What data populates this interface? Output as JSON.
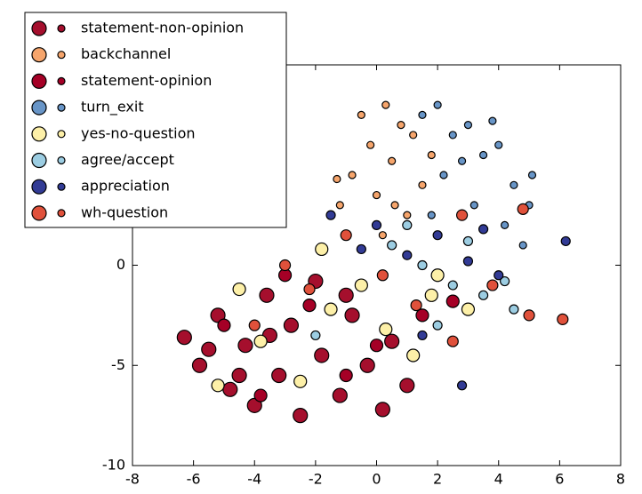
{
  "chart_data": {
    "type": "scatter",
    "xlim": [
      -8,
      8
    ],
    "xticks": [
      -8,
      -6,
      -4,
      -2,
      0,
      2,
      4,
      6,
      8
    ],
    "ylim": [
      -10,
      10
    ],
    "yticks": [
      -10,
      -5,
      0
    ],
    "legend": "upper-left",
    "series": [
      {
        "name": "statement-non-opinion",
        "color": "#a50f2d",
        "x": [
          -6.3,
          -5.8,
          -5.2,
          -4.8,
          -4.3,
          -4,
          -3.6,
          -3.2,
          -2.8,
          -2.5,
          -2,
          -1.8,
          -1.2,
          -0.8,
          -0.3,
          0.2,
          0.5,
          1,
          -5.5,
          -3.5,
          -1,
          -4.5
        ],
        "y": [
          -3.6,
          -5,
          -2.5,
          -6.2,
          -4,
          -7,
          -1.5,
          -5.5,
          -3,
          -7.5,
          -0.8,
          -4.5,
          -6.5,
          -2.5,
          -5,
          -7.2,
          -3.8,
          -6,
          -4.2,
          -3.5,
          -1.5,
          -5.5
        ]
      },
      {
        "name": "backchannel",
        "color": "#f6a56c",
        "x": [
          -0.8,
          -0.5,
          -0.2,
          0,
          0.3,
          0.5,
          0.8,
          1,
          1.2,
          1.5,
          -1.2,
          0.2,
          1.8,
          -1.3,
          0.6
        ],
        "y": [
          4.5,
          7.5,
          6,
          3.5,
          8,
          5.2,
          7,
          2.5,
          6.5,
          4,
          3,
          1.5,
          5.5,
          4.3,
          3
        ]
      },
      {
        "name": "statement-opinion",
        "color": "#a50026",
        "x": [
          -5,
          -3.8,
          -2.2,
          -1,
          0,
          1.5,
          2.5,
          -3
        ],
        "y": [
          -3,
          -6.5,
          -2,
          -5.5,
          -4,
          -2.5,
          -1.8,
          -0.5
        ]
      },
      {
        "name": "turn_exit",
        "color": "#6895c7",
        "x": [
          1.5,
          2,
          2.5,
          3,
          3.5,
          4,
          4.5,
          5,
          2.2,
          3.2,
          4.2,
          4.8,
          2.8,
          3.8,
          5.1,
          1.8
        ],
        "y": [
          7.5,
          8,
          6.5,
          7,
          5.5,
          6,
          4,
          3,
          4.5,
          3,
          2,
          1,
          5.2,
          7.2,
          4.5,
          2.5
        ]
      },
      {
        "name": "yes-no-question",
        "color": "#fdf0a8",
        "x": [
          -4.5,
          -3.8,
          -2.5,
          -1.5,
          -0.5,
          0.3,
          1.2,
          2,
          3,
          -1.8,
          -5.2,
          1.8
        ],
        "y": [
          -1.2,
          -3.8,
          -5.8,
          -2.2,
          -1,
          -3.2,
          -4.5,
          -0.5,
          -2.2,
          0.8,
          -6,
          -1.5
        ]
      },
      {
        "name": "agree/accept",
        "color": "#9ccde2",
        "x": [
          -2,
          0.5,
          1.5,
          2.5,
          3.5,
          4.2,
          1,
          3,
          2,
          4.5
        ],
        "y": [
          -3.5,
          1,
          0,
          -1,
          -1.5,
          -0.8,
          2,
          1.2,
          -3,
          -2.2
        ]
      },
      {
        "name": "appreciation",
        "color": "#323b95",
        "x": [
          -1.5,
          0,
          1,
          2,
          3,
          4,
          3.5,
          2.8,
          6.2,
          1.5,
          -0.5
        ],
        "y": [
          2.5,
          2,
          0.5,
          1.5,
          0.2,
          -0.5,
          1.8,
          -6,
          1.2,
          -3.5,
          0.8
        ]
      },
      {
        "name": "wh-question",
        "color": "#e0513b",
        "x": [
          -3,
          -2.2,
          -1,
          0.2,
          1.3,
          2.5,
          3.8,
          5,
          6.1,
          4.8,
          -4,
          2.8
        ],
        "y": [
          0,
          -1.2,
          1.5,
          -0.5,
          -2,
          -3.8,
          -1,
          -2.5,
          -2.7,
          2.8,
          -3,
          2.5
        ]
      }
    ]
  }
}
